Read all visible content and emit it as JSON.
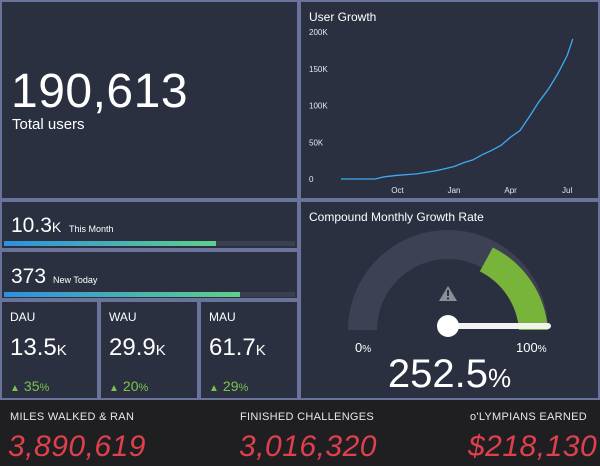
{
  "total": {
    "value": "190,613",
    "label": "Total users"
  },
  "month": {
    "value": "10.3",
    "unit": "K",
    "label": "This Month",
    "progress": 0.73
  },
  "today": {
    "value": "373",
    "label": "New Today",
    "progress": 0.81
  },
  "dau": {
    "title": "DAU",
    "value": "13.5",
    "unit": "K",
    "change": "35",
    "pct": "%"
  },
  "wau": {
    "title": "WAU",
    "value": "29.9",
    "unit": "K",
    "change": "20",
    "pct": "%"
  },
  "mau": {
    "title": "MAU",
    "value": "61.7",
    "unit": "K",
    "change": "29",
    "pct": "%"
  },
  "growth_chart": {
    "title": "User Growth",
    "line_color": "#3fa9f5"
  },
  "gauge": {
    "title": "Compound Monthly Growth Rate",
    "min_label": "0",
    "max_label": "100",
    "pct": "%",
    "value": "252.5",
    "warning_icon": "warning-icon",
    "green": "#78b43a"
  },
  "footer": {
    "miles_label": "MILES WALKED & RAN",
    "miles_value": "3,890,619",
    "challenges_label": "FINISHED CHALLENGES",
    "challenges_value": "3,016,320",
    "earned_label": "o'LYMPIANS EARNED",
    "earned_value": "$218,130"
  },
  "chart_data": {
    "type": "line",
    "ytick_labels": [
      "200K",
      "150K",
      "100K",
      "50K",
      "0"
    ],
    "yticks": [
      200000,
      150000,
      100000,
      50000,
      0
    ],
    "xtick_labels": [
      "Oct",
      "Jan",
      "Apr",
      "Jul"
    ],
    "xticks": [
      3,
      6,
      9,
      12
    ],
    "ylim": [
      0,
      200000
    ],
    "xlim": [
      0,
      13
    ],
    "series": [
      {
        "x": [
          0,
          1,
          1.8,
          2.3,
          3,
          3.5,
          4,
          4.5,
          5,
          5.5,
          6,
          6.5,
          7,
          7.5,
          8,
          8.5,
          9,
          9.5,
          10,
          10.5,
          11,
          11.5,
          12,
          12.3
        ],
        "values": [
          0,
          0,
          0,
          3000,
          5000,
          6000,
          7000,
          9000,
          11000,
          14000,
          17000,
          22000,
          26000,
          33000,
          39000,
          46000,
          57000,
          66000,
          85000,
          105000,
          122000,
          143000,
          168000,
          190613
        ]
      }
    ]
  }
}
